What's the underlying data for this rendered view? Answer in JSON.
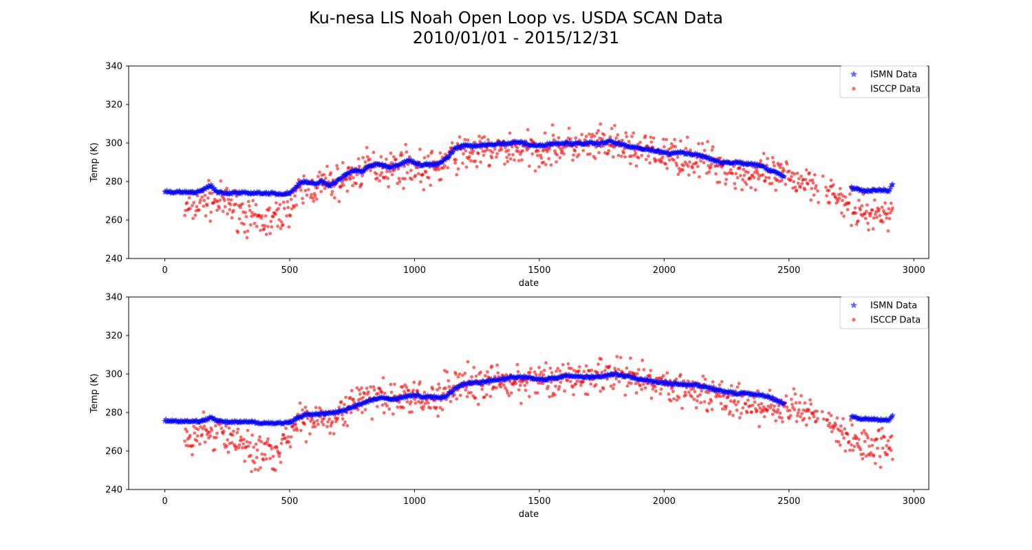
{
  "figure": {
    "title_line1": "Ku-nesa LIS Noah Open Loop vs. USDA SCAN Data",
    "title_line2": "2010/01/01 - 2015/12/31"
  },
  "colors": {
    "ismn": "#0000ff",
    "isccp": "#ff0000"
  },
  "chart_data": [
    {
      "type": "scatter",
      "xlabel": "date",
      "ylabel": "Temp (K)",
      "xlim": [
        -145,
        3060
      ],
      "ylim": [
        240,
        340
      ],
      "xticks": [
        0,
        500,
        1000,
        1500,
        2000,
        2500,
        3000
      ],
      "yticks": [
        240,
        260,
        280,
        300,
        320,
        340
      ],
      "legend_position": "top-right",
      "series": [
        {
          "name": "ISMN Data",
          "marker": "star",
          "color": "#0000ff",
          "x": [
            0,
            30,
            60,
            90,
            120,
            150,
            170,
            185,
            200,
            215,
            250,
            300,
            350,
            400,
            450,
            500,
            520,
            540,
            560,
            600,
            630,
            660,
            700,
            730,
            760,
            790,
            820,
            860,
            900,
            940,
            980,
            1000,
            1020,
            1050,
            1080,
            1110,
            1140,
            1160,
            1180,
            1210,
            1240,
            1270,
            1300,
            1340,
            1380,
            1420,
            1460,
            1500,
            1540,
            1580,
            1620,
            1660,
            1700,
            1740,
            1780,
            1800,
            1820,
            1860,
            1900,
            1940,
            1980,
            2020,
            2060,
            2100,
            2140,
            2180,
            2220,
            2260,
            2300,
            2340,
            2380,
            2420,
            2460,
            2480,
            2750,
            2780,
            2810,
            2840,
            2880,
            2900,
            2915
          ],
          "y": [
            275,
            274.5,
            274.5,
            274.5,
            274.5,
            275,
            277,
            278,
            275.5,
            274.5,
            274,
            274,
            274,
            274,
            273.5,
            274,
            276,
            279.5,
            280,
            278.5,
            280,
            278,
            281,
            284,
            286,
            285,
            288,
            289,
            287.5,
            289,
            291,
            290,
            288.5,
            289,
            288.5,
            290,
            293.5,
            297,
            298,
            299,
            298.5,
            299,
            299,
            299.5,
            300,
            300.5,
            299,
            298.5,
            299.5,
            300,
            300,
            299.5,
            300,
            299.5,
            301,
            300,
            299.5,
            298,
            297.5,
            296.5,
            295.5,
            294.5,
            295,
            294.5,
            293.5,
            292,
            290,
            290,
            289.5,
            289,
            288.5,
            286,
            284,
            282.5,
            277,
            275.5,
            275,
            275.5,
            275.5,
            275,
            278.5
          ]
        },
        {
          "name": "ISCCP Data",
          "marker": "circle",
          "color": "#ff0000",
          "trend_x": [
            80,
            150,
            200,
            250,
            300,
            350,
            400,
            450,
            500,
            560,
            620,
            680,
            740,
            800,
            860,
            920,
            980,
            1040,
            1100,
            1160,
            1220,
            1280,
            1340,
            1400,
            1460,
            1520,
            1580,
            1640,
            1700,
            1760,
            1820,
            1880,
            1940,
            2000,
            2060,
            2120,
            2180,
            2240,
            2300,
            2360,
            2420,
            2480,
            2540,
            2600,
            2640,
            2680,
            2720,
            2760,
            2800,
            2840,
            2880,
            2915
          ],
          "trend_y": [
            265,
            270,
            270,
            268,
            265,
            259,
            259,
            261,
            268,
            276,
            278,
            279,
            282,
            287,
            288,
            287,
            289,
            285,
            288,
            294,
            295,
            295,
            296,
            297,
            296,
            297,
            298,
            298,
            298,
            299,
            298,
            297,
            295,
            294,
            293,
            292,
            290,
            288,
            285,
            283,
            283,
            282,
            281,
            280,
            278,
            273,
            268,
            265,
            264,
            263,
            263,
            265
          ],
          "spread": 7
        }
      ]
    },
    {
      "type": "scatter",
      "xlabel": "date",
      "ylabel": "Temp (K)",
      "xlim": [
        -145,
        3060
      ],
      "ylim": [
        240,
        340
      ],
      "xticks": [
        0,
        500,
        1000,
        1500,
        2000,
        2500,
        3000
      ],
      "yticks": [
        240,
        260,
        280,
        300,
        320,
        340
      ],
      "legend_position": "top-right",
      "series": [
        {
          "name": "ISMN Data",
          "marker": "star",
          "color": "#0000ff",
          "x": [
            0,
            30,
            60,
            90,
            120,
            150,
            170,
            185,
            200,
            215,
            250,
            300,
            350,
            400,
            450,
            500,
            530,
            560,
            600,
            640,
            680,
            720,
            760,
            800,
            840,
            880,
            920,
            960,
            1000,
            1040,
            1080,
            1120,
            1160,
            1200,
            1240,
            1280,
            1320,
            1360,
            1400,
            1440,
            1480,
            1520,
            1560,
            1600,
            1640,
            1680,
            1720,
            1760,
            1800,
            1840,
            1880,
            1920,
            1960,
            2000,
            2040,
            2080,
            2120,
            2160,
            2200,
            2240,
            2280,
            2320,
            2360,
            2400,
            2440,
            2480,
            2750,
            2780,
            2810,
            2840,
            2880,
            2900,
            2915
          ],
          "y": [
            276,
            275.5,
            275.5,
            275.5,
            275.5,
            275.5,
            276.5,
            278,
            276.5,
            275.5,
            275,
            275,
            275,
            274.5,
            274.5,
            274.5,
            277,
            279,
            279,
            279.5,
            280,
            281,
            283.5,
            285,
            287,
            287.5,
            287,
            288,
            289,
            288,
            288,
            288,
            292,
            295,
            295.5,
            296,
            297,
            297.5,
            298.5,
            298.5,
            297.5,
            297,
            298,
            299,
            299,
            298.5,
            298.5,
            299,
            300,
            299,
            298,
            297,
            296,
            295.5,
            295,
            294.5,
            294.5,
            293.5,
            292,
            291,
            290,
            290,
            289,
            289,
            287,
            284.5,
            278,
            277,
            276.5,
            276.5,
            276,
            276,
            278.5
          ]
        },
        {
          "name": "ISCCP Data",
          "marker": "circle",
          "color": "#ff0000",
          "trend_x": [
            80,
            150,
            200,
            250,
            300,
            350,
            400,
            450,
            500,
            560,
            620,
            680,
            740,
            800,
            860,
            920,
            980,
            1040,
            1100,
            1160,
            1220,
            1280,
            1340,
            1400,
            1460,
            1520,
            1580,
            1640,
            1700,
            1760,
            1820,
            1880,
            1940,
            2000,
            2060,
            2120,
            2180,
            2240,
            2300,
            2360,
            2420,
            2480,
            2540,
            2600,
            2640,
            2680,
            2720,
            2760,
            2800,
            2840,
            2880,
            2915
          ],
          "trend_y": [
            265,
            270,
            270,
            268,
            265,
            259,
            259,
            261,
            268,
            276,
            278,
            279,
            282,
            287,
            288,
            287,
            289,
            285,
            288,
            294,
            295,
            295,
            296,
            297,
            296,
            297,
            298,
            298,
            298,
            299,
            298,
            297,
            295,
            294,
            293,
            292,
            290,
            288,
            285,
            283,
            283,
            282,
            281,
            280,
            278,
            273,
            268,
            265,
            264,
            263,
            263,
            265
          ],
          "spread": 7
        }
      ]
    }
  ]
}
